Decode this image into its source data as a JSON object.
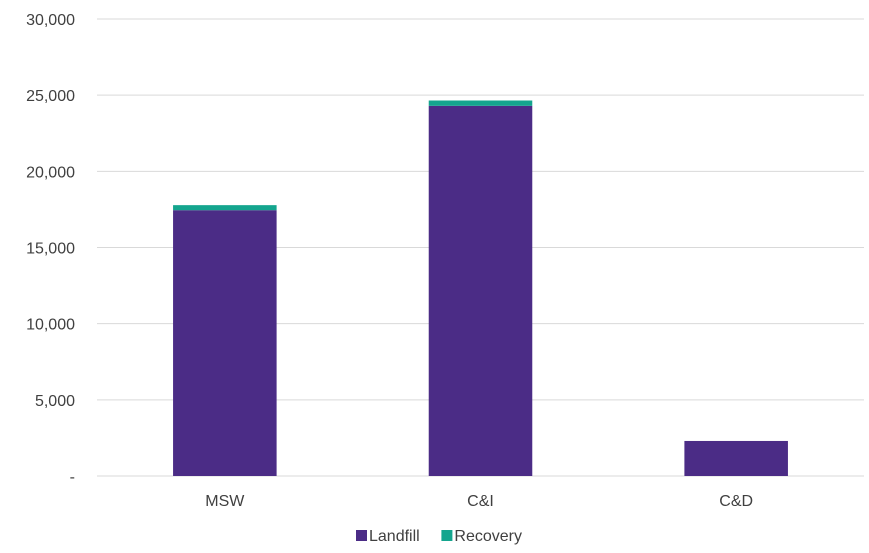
{
  "chart_data": {
    "type": "bar",
    "stacked": true,
    "categories": [
      "MSW",
      "C&I",
      "C&D"
    ],
    "series": [
      {
        "name": "Landfill",
        "values": [
          17450,
          24300,
          2300
        ],
        "color": "#4b2c86"
      },
      {
        "name": "Recovery",
        "values": [
          330,
          350,
          0
        ],
        "color": "#14a58e"
      }
    ],
    "yticks": [
      "-",
      "5,000",
      "10,000",
      "15,000",
      "20,000",
      "25,000",
      "30,000"
    ],
    "ylim": [
      0,
      30000
    ],
    "ytick_step": 5000,
    "grid": true,
    "legend_position": "bottom"
  }
}
